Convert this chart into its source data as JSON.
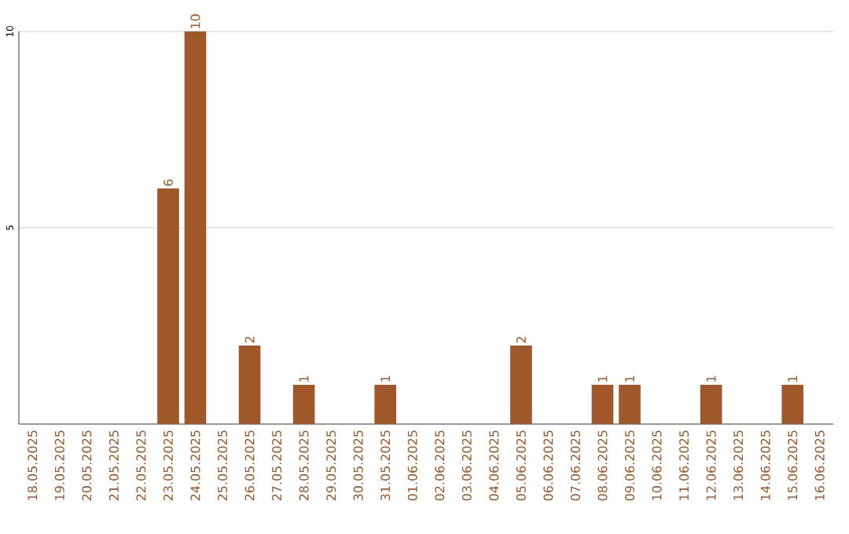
{
  "chart_data": {
    "type": "bar",
    "categories": [
      "18.05.2025",
      "19.05.2025",
      "20.05.2025",
      "21.05.2025",
      "22.05.2025",
      "23.05.2025",
      "24.05.2025",
      "25.05.2025",
      "26.05.2025",
      "27.05.2025",
      "28.05.2025",
      "29.05.2025",
      "30.05.2025",
      "31.05.2025",
      "01.06.2025",
      "02.06.2025",
      "03.06.2025",
      "04.06.2025",
      "05.06.2025",
      "06.06.2025",
      "07.06.2025",
      "08.06.2025",
      "09.06.2025",
      "10.06.2025",
      "11.06.2025",
      "12.06.2025",
      "13.06.2025",
      "14.06.2025",
      "15.06.2025",
      "16.06.2025"
    ],
    "values": [
      0,
      0,
      0,
      0,
      0,
      6,
      10,
      0,
      2,
      0,
      1,
      0,
      0,
      1,
      0,
      0,
      0,
      0,
      2,
      0,
      0,
      1,
      1,
      0,
      0,
      1,
      0,
      0,
      1,
      0
    ],
    "value_labels": [
      null,
      null,
      null,
      null,
      null,
      "6",
      "10",
      null,
      "2",
      null,
      "1",
      null,
      null,
      "1",
      null,
      null,
      null,
      null,
      "2",
      null,
      null,
      "1",
      "1",
      null,
      null,
      "1",
      null,
      null,
      "1",
      null
    ],
    "color": "#a0572a",
    "ylim": [
      0,
      10
    ],
    "yticks": [
      5,
      10
    ],
    "grid": "y"
  }
}
